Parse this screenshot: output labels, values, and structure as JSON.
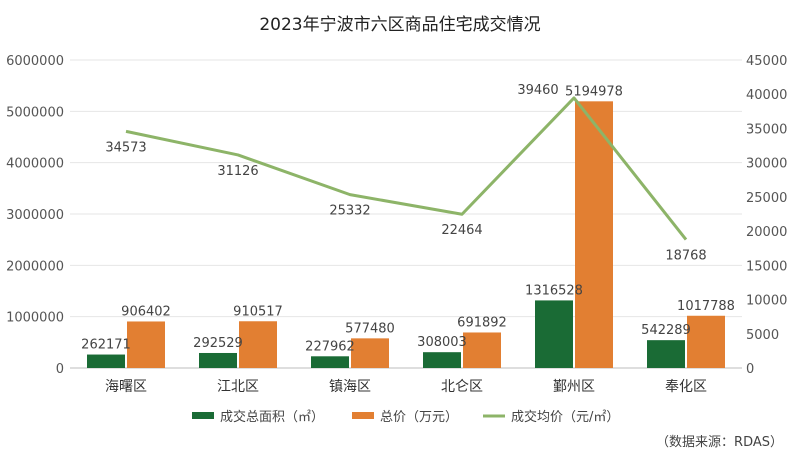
{
  "chart_data": {
    "type": "bar+line",
    "title": "2023年宁波市六区商品住宅成交情况",
    "categories": [
      "海曙区",
      "江北区",
      "镇海区",
      "北仑区",
      "鄞州区",
      "奉化区"
    ],
    "series": [
      {
        "name": "成交总面积（㎡）",
        "type": "bar",
        "axis": "left",
        "color": "#1a6b35",
        "values": [
          262171,
          292529,
          227962,
          308003,
          1316528,
          542289
        ]
      },
      {
        "name": "总价（万元）",
        "type": "bar",
        "axis": "left",
        "color": "#e27f32",
        "values": [
          906402,
          910517,
          577480,
          691892,
          5194978,
          1017788
        ]
      },
      {
        "name": "成交均价（元/㎡）",
        "type": "line",
        "axis": "right",
        "color": "#8db468",
        "values": [
          34573,
          31126,
          25332,
          22464,
          39460,
          18768
        ]
      }
    ],
    "y_left": {
      "min": 0,
      "max": 6000000,
      "ticks": [
        "0",
        "1000000",
        "2000000",
        "3000000",
        "4000000",
        "5000000",
        "6000000"
      ]
    },
    "y_right": {
      "min": 0,
      "max": 45000,
      "ticks": [
        "0",
        "5000",
        "10000",
        "15000",
        "20000",
        "25000",
        "30000",
        "35000",
        "40000",
        "45000"
      ]
    },
    "grid": true,
    "legend_position": "bottom",
    "source": "（数据来源：RDAS）"
  }
}
